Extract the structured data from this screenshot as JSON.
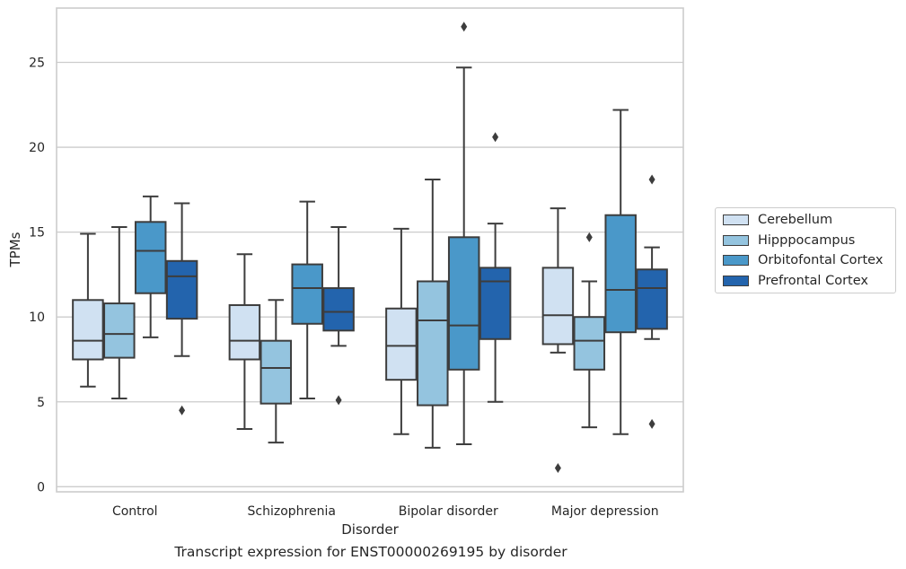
{
  "chart_data": {
    "type": "box",
    "title": "",
    "caption": "Transcript expression for ENST00000269195 by disorder",
    "xlabel": "Disorder",
    "ylabel": "TPMs",
    "ylim": [
      -0.3,
      28.2
    ],
    "yticks": [
      "0",
      "5",
      "10",
      "15",
      "20",
      "25"
    ],
    "grid": "horizontal",
    "legend_position": "right",
    "categories": [
      "Control",
      "Schizophrenia",
      "Bipolar disorder",
      "Major depression"
    ],
    "series": [
      {
        "name": "Cerebellum",
        "color": "#d0e1f2",
        "boxes": [
          {
            "whislo": 5.9,
            "q1": 7.5,
            "med": 8.6,
            "q3": 11.0,
            "whishi": 14.9,
            "fliers": []
          },
          {
            "whislo": 3.4,
            "q1": 7.5,
            "med": 8.6,
            "q3": 10.7,
            "whishi": 13.7,
            "fliers": []
          },
          {
            "whislo": 3.1,
            "q1": 6.3,
            "med": 8.3,
            "q3": 10.5,
            "whishi": 15.2,
            "fliers": []
          },
          {
            "whislo": 7.9,
            "q1": 8.4,
            "med": 10.1,
            "q3": 12.9,
            "whishi": 16.4,
            "fliers": [
              1.1
            ]
          }
        ]
      },
      {
        "name": "Hipppocampus",
        "color": "#94c4df",
        "boxes": [
          {
            "whislo": 5.2,
            "q1": 7.6,
            "med": 9.0,
            "q3": 10.8,
            "whishi": 15.3,
            "fliers": []
          },
          {
            "whislo": 2.6,
            "q1": 4.9,
            "med": 7.0,
            "q3": 8.6,
            "whishi": 11.0,
            "fliers": []
          },
          {
            "whislo": 2.3,
            "q1": 4.8,
            "med": 9.8,
            "q3": 12.1,
            "whishi": 18.1,
            "fliers": []
          },
          {
            "whislo": 3.5,
            "q1": 6.9,
            "med": 8.6,
            "q3": 10.0,
            "whishi": 12.1,
            "fliers": [
              14.7
            ]
          }
        ]
      },
      {
        "name": "Orbitofontal Cortex",
        "color": "#4a98c9",
        "boxes": [
          {
            "whislo": 8.8,
            "q1": 11.4,
            "med": 13.9,
            "q3": 15.6,
            "whishi": 17.1,
            "fliers": []
          },
          {
            "whislo": 5.2,
            "q1": 9.6,
            "med": 11.7,
            "q3": 13.1,
            "whishi": 16.8,
            "fliers": []
          },
          {
            "whislo": 2.5,
            "q1": 6.9,
            "med": 9.5,
            "q3": 14.7,
            "whishi": 24.7,
            "fliers": [
              27.1
            ]
          },
          {
            "whislo": 3.1,
            "q1": 9.1,
            "med": 11.6,
            "q3": 16.0,
            "whishi": 22.2,
            "fliers": []
          }
        ]
      },
      {
        "name": "Prefrontal Cortex",
        "color": "#2364ad",
        "boxes": [
          {
            "whislo": 7.7,
            "q1": 9.9,
            "med": 12.4,
            "q3": 13.3,
            "whishi": 16.7,
            "fliers": [
              4.5
            ]
          },
          {
            "whislo": 8.3,
            "q1": 9.2,
            "med": 10.3,
            "q3": 11.7,
            "whishi": 15.3,
            "fliers": [
              5.1
            ]
          },
          {
            "whislo": 5.0,
            "q1": 8.7,
            "med": 12.1,
            "q3": 12.9,
            "whishi": 15.5,
            "fliers": [
              20.6
            ]
          },
          {
            "whislo": 8.7,
            "q1": 9.3,
            "med": 11.7,
            "q3": 12.8,
            "whishi": 14.1,
            "fliers": [
              3.7,
              18.1
            ]
          }
        ]
      }
    ]
  }
}
